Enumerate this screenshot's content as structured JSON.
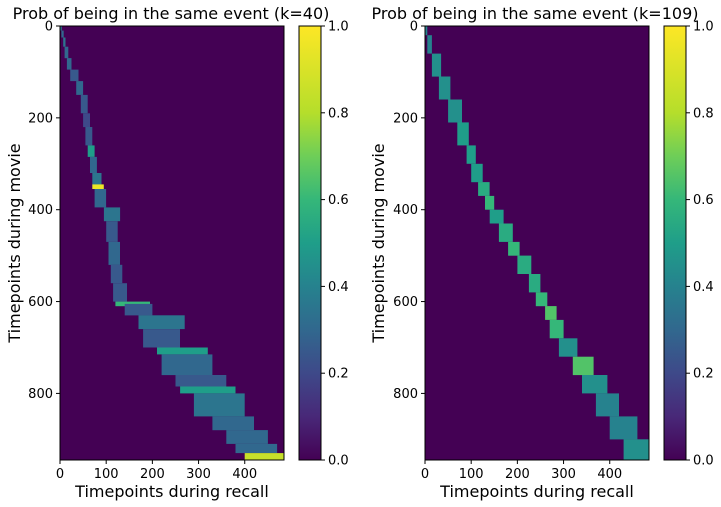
{
  "chart_data": [
    {
      "type": "heatmap",
      "title": "Prob of being in the same event (k=40)",
      "xlabel": "Timepoints during recall",
      "ylabel": "Timepoints during movie",
      "xlim": [
        0,
        485
      ],
      "ylim": [
        945,
        0
      ],
      "x_ticks": [
        "0",
        "100",
        "200",
        "300",
        "400"
      ],
      "y_ticks": [
        "0",
        "200",
        "400",
        "600",
        "800"
      ],
      "colorbar": {
        "range": [
          0,
          1
        ],
        "ticks": [
          "0.0",
          "0.2",
          "0.4",
          "0.6",
          "0.8",
          "1.0"
        ],
        "colormap": "viridis"
      },
      "events": [
        [
          0,
          10,
          0,
          4,
          0.35
        ],
        [
          10,
          25,
          3,
          8,
          0.3
        ],
        [
          25,
          45,
          7,
          12,
          0.35
        ],
        [
          45,
          70,
          10,
          18,
          0.3
        ],
        [
          70,
          95,
          15,
          25,
          0.3
        ],
        [
          95,
          120,
          22,
          40,
          0.25
        ],
        [
          120,
          150,
          35,
          50,
          0.3
        ],
        [
          150,
          190,
          45,
          60,
          0.25
        ],
        [
          190,
          220,
          50,
          65,
          0.2
        ],
        [
          220,
          260,
          55,
          70,
          0.25
        ],
        [
          260,
          285,
          60,
          75,
          0.5
        ],
        [
          285,
          320,
          65,
          80,
          0.3
        ],
        [
          320,
          345,
          70,
          90,
          0.35
        ],
        [
          345,
          355,
          70,
          95,
          0.95
        ],
        [
          355,
          395,
          75,
          100,
          0.3
        ],
        [
          395,
          425,
          95,
          130,
          0.35
        ],
        [
          425,
          470,
          100,
          125,
          0.25
        ],
        [
          470,
          520,
          105,
          130,
          0.3
        ],
        [
          520,
          560,
          110,
          135,
          0.25
        ],
        [
          560,
          600,
          115,
          145,
          0.25
        ],
        [
          600,
          610,
          120,
          195,
          0.6
        ],
        [
          605,
          630,
          140,
          200,
          0.25
        ],
        [
          630,
          660,
          170,
          270,
          0.35
        ],
        [
          660,
          700,
          180,
          260,
          0.25
        ],
        [
          700,
          715,
          210,
          320,
          0.5
        ],
        [
          715,
          760,
          220,
          330,
          0.3
        ],
        [
          760,
          785,
          250,
          360,
          0.25
        ],
        [
          785,
          800,
          260,
          380,
          0.5
        ],
        [
          800,
          850,
          290,
          400,
          0.35
        ],
        [
          850,
          880,
          330,
          420,
          0.3
        ],
        [
          880,
          910,
          360,
          450,
          0.3
        ],
        [
          910,
          930,
          380,
          470,
          0.3
        ],
        [
          930,
          945,
          400,
          485,
          0.85
        ]
      ]
    },
    {
      "type": "heatmap",
      "title": "Prob of being in the same event (k=109)",
      "xlabel": "Timepoints during recall",
      "ylabel": "Timepoints during movie",
      "xlim": [
        0,
        485
      ],
      "ylim": [
        945,
        0
      ],
      "x_ticks": [
        "0",
        "100",
        "200",
        "300",
        "400"
      ],
      "y_ticks": [
        "0",
        "200",
        "400",
        "600",
        "800"
      ],
      "colorbar": {
        "range": [
          0,
          1
        ],
        "ticks": [
          "0.0",
          "0.2",
          "0.4",
          "0.6",
          "0.8",
          "1.0"
        ],
        "colormap": "viridis"
      },
      "events": [
        [
          0,
          20,
          0,
          5,
          0.4
        ],
        [
          20,
          60,
          5,
          15,
          0.4
        ],
        [
          60,
          110,
          15,
          35,
          0.45
        ],
        [
          110,
          160,
          30,
          55,
          0.45
        ],
        [
          160,
          210,
          50,
          80,
          0.45
        ],
        [
          210,
          260,
          70,
          95,
          0.5
        ],
        [
          260,
          300,
          90,
          110,
          0.5
        ],
        [
          300,
          340,
          100,
          125,
          0.5
        ],
        [
          340,
          370,
          115,
          140,
          0.55
        ],
        [
          370,
          400,
          130,
          150,
          0.6
        ],
        [
          400,
          430,
          140,
          170,
          0.5
        ],
        [
          430,
          470,
          160,
          190,
          0.55
        ],
        [
          470,
          500,
          180,
          205,
          0.6
        ],
        [
          500,
          540,
          200,
          230,
          0.55
        ],
        [
          540,
          580,
          225,
          250,
          0.55
        ],
        [
          580,
          610,
          240,
          265,
          0.6
        ],
        [
          610,
          640,
          260,
          285,
          0.65
        ],
        [
          640,
          680,
          270,
          300,
          0.6
        ],
        [
          680,
          720,
          290,
          330,
          0.45
        ],
        [
          720,
          760,
          320,
          365,
          0.65
        ],
        [
          760,
          800,
          340,
          395,
          0.45
        ],
        [
          800,
          850,
          370,
          420,
          0.4
        ],
        [
          850,
          900,
          400,
          460,
          0.4
        ],
        [
          900,
          945,
          430,
          485,
          0.45
        ]
      ]
    }
  ]
}
